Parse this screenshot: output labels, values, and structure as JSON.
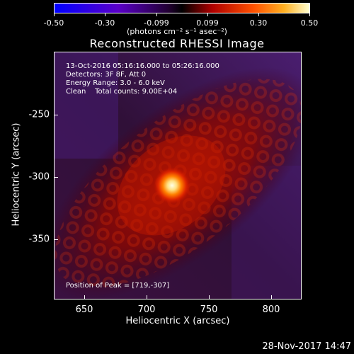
{
  "colorbar": {
    "ticks": [
      "-0.50",
      "-0.30",
      "-0.099",
      "0.099",
      "0.30",
      "0.50"
    ],
    "units": "(photons cm⁻² s⁻¹ asec⁻²)",
    "colors": [
      "#0000ff",
      "#6600cc",
      "#000000",
      "#cc0000",
      "#ff8800",
      "#ffffaa"
    ]
  },
  "plot": {
    "title": "Reconstructed RHESSI Image",
    "info": [
      "13-Oct-2016 05:16:16.000 to 05:26:16.000",
      "Detectors: 3F 8F, Att 0",
      "Energy Range: 3.0 - 6.0 keV",
      "Clean    Total counts: 9.00E+04"
    ],
    "peak": "Position of Peak = [719,-307]",
    "xlabel": "Heliocentric X (arcsec)",
    "ylabel": "Heliocentric Y (arcsec)",
    "xticks": [
      "650",
      "700",
      "750",
      "800"
    ],
    "yticks": [
      "-250",
      "-300",
      "-350"
    ]
  },
  "timestamp": "28-Nov-2017 14:47"
}
